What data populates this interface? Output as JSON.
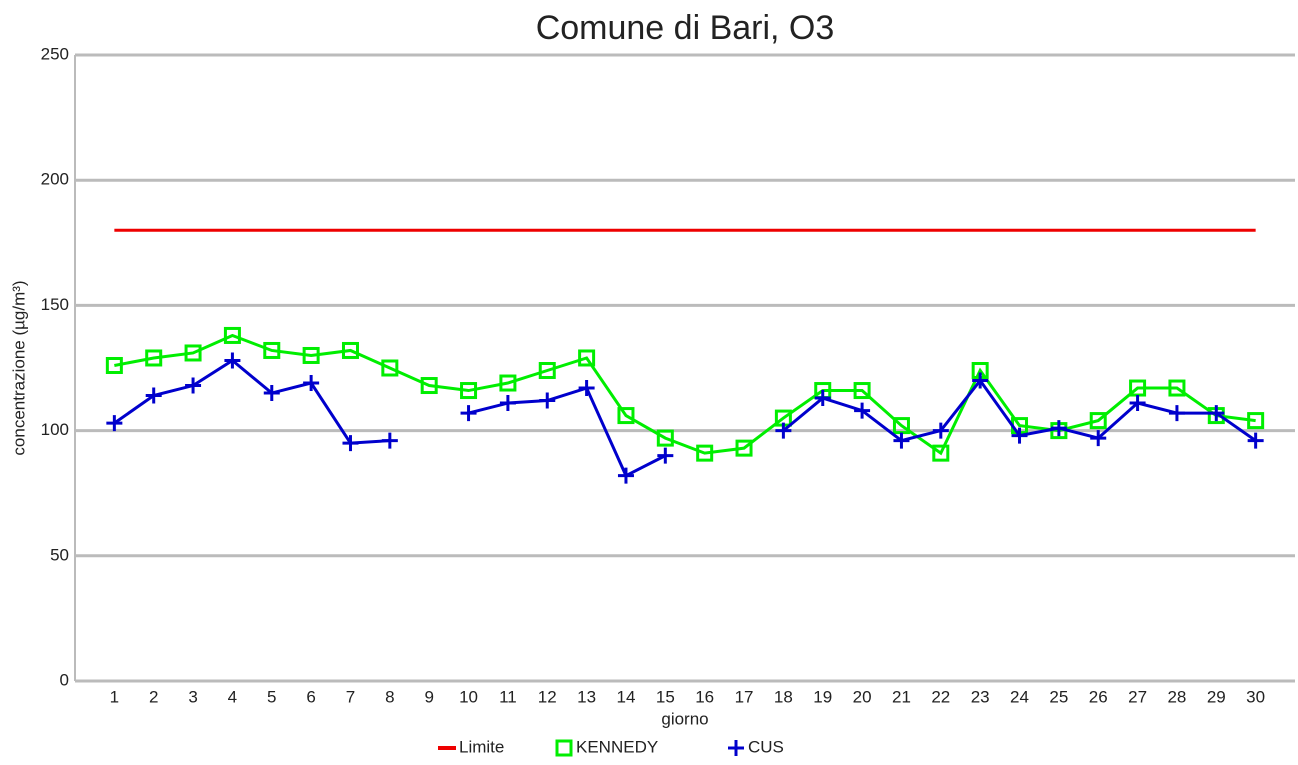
{
  "chart_data": {
    "type": "line",
    "title": "Comune di Bari, O3",
    "x_label": "giorno",
    "y_label": "concentrazione (µg/m³)",
    "categories": [
      "1",
      "2",
      "3",
      "4",
      "5",
      "6",
      "7",
      "8",
      "9",
      "10",
      "11",
      "12",
      "13",
      "14",
      "15",
      "16",
      "17",
      "18",
      "19",
      "20",
      "21",
      "22",
      "23",
      "24",
      "25",
      "26",
      "27",
      "28",
      "29",
      "30"
    ],
    "ylim": [
      0,
      250
    ],
    "yticks": [
      0,
      50,
      100,
      150,
      200,
      250
    ],
    "grid": true,
    "legend": "bottom",
    "series": [
      {
        "name": "Limite",
        "color": "#ee0000",
        "marker": "none",
        "values": [
          180,
          180,
          180,
          180,
          180,
          180,
          180,
          180,
          180,
          180,
          180,
          180,
          180,
          180,
          180,
          180,
          180,
          180,
          180,
          180,
          180,
          180,
          180,
          180,
          180,
          180,
          180,
          180,
          180,
          180
        ]
      },
      {
        "name": "KENNEDY",
        "color": "#00ee00",
        "marker": "square",
        "values": [
          126,
          129,
          131,
          138,
          132,
          130,
          132,
          125,
          118,
          116,
          119,
          124,
          129,
          106,
          97,
          91,
          93,
          105,
          116,
          116,
          102,
          91,
          124,
          102,
          100,
          104,
          117,
          117,
          106,
          104
        ]
      },
      {
        "name": "CUS",
        "color": "#0000cc",
        "marker": "plus",
        "values": [
          103,
          114,
          118,
          128,
          115,
          119,
          95,
          96,
          null,
          107,
          111,
          112,
          117,
          82,
          90,
          null,
          null,
          100,
          113,
          108,
          96,
          100,
          120,
          98,
          101,
          97,
          111,
          107,
          107,
          96
        ]
      }
    ]
  }
}
